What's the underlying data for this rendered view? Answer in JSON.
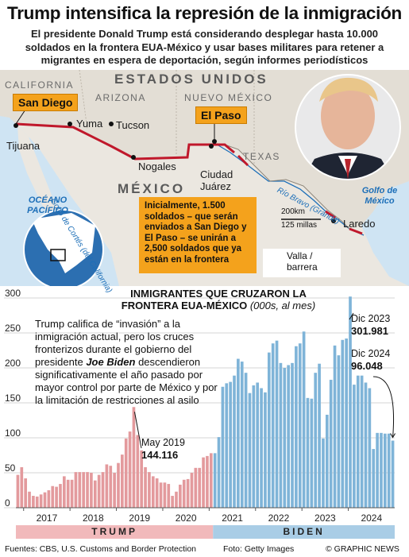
{
  "header": {
    "title": "Trump intensifica la represión de la inmigración",
    "subtitle": "El presidente Donald Trump está considerando desplegar hasta 10.000 soldados en la frontera EUA-México y usar bases militares para retener a migrantes en espera de deportación, según informes periodísticos"
  },
  "map": {
    "countries": {
      "usa": "ESTADOS UNIDOS",
      "mexico": "MÉXICO"
    },
    "states": {
      "california": "CALIFORNIA",
      "arizona": "ARIZONA",
      "new_mexico": "NUEVO MÉXICO",
      "texas": "TEXAS"
    },
    "cities": {
      "san_diego": "San Diego",
      "tijuana": "Tijuana",
      "yuma": "Yuma",
      "tucson": "Tucson",
      "nogales": "Nogales",
      "el_paso": "El Paso",
      "ciudad_juarez_1": "Ciudad",
      "ciudad_juarez_2": "Juárez",
      "laredo": "Laredo"
    },
    "water": {
      "pacific_1": "OCÉANO",
      "pacific_2": "PACÍFICO",
      "gulf_california": "Golfo de Cortés (del California)",
      "gulf_mexico_1": "Golfo de",
      "gulf_mexico_2": "México",
      "river": "Río Bravo (Grande)"
    },
    "scale": {
      "km": "200km",
      "miles": "125 millas"
    },
    "infobox": "Inicialmente, 1.500 soldados – que serán enviados a San Diego y El Paso – se unirán a 2,500 soldados que ya están en la frontera",
    "legend": {
      "label_1": "Valla /",
      "label_2": "barrera",
      "color": "#c0182b"
    },
    "colors": {
      "land": "#ebe7e0",
      "usa_land": "#e3ded5",
      "water": "#cfe4f3",
      "callout": "#f4a21c"
    }
  },
  "chart": {
    "title_line1": "INMIGRANTES QUE CRUZARON LA",
    "title_line2": "FRONTERA EUA-MÉXICO",
    "title_unit": "(000s, al mes)",
    "note_pre": "Trump califica de “invasión” a la inmigración actual, pero los cruces fronterizos durante el gobierno del presidente ",
    "note_name": "Joe Biden",
    "note_post": " descendieron significativamente el año pasado por mayor control por parte de México y por la limitación de restricciones al asilo",
    "annotations": {
      "may2019_label": "May 2019",
      "may2019_value": "144.116",
      "dec2023_label": "Dic 2023",
      "dec2023_value": "301.981",
      "dec2024_label": "Dic 2024",
      "dec2024_value": "96.048"
    },
    "eras": {
      "trump": "TRUMP",
      "biden": "BIDEN"
    },
    "colors": {
      "trump": "#e39a9d",
      "biden": "#7fb4d8",
      "trump_band": "#f1b9bb",
      "biden_band": "#a9cde6"
    }
  },
  "chart_data": {
    "type": "bar",
    "title": "INMIGRANTES QUE CRUZARON LA FRONTERA EUA-MÉXICO (000s, al mes)",
    "ylim": [
      0,
      300
    ],
    "yticks": [
      0,
      50,
      100,
      150,
      200,
      250,
      300
    ],
    "xticks": [
      "2017",
      "2018",
      "2019",
      "2020",
      "2021",
      "2022",
      "2023",
      "2024"
    ],
    "start": "2016-11",
    "series": [
      {
        "name": "TRUMP",
        "values": [
          47,
          58,
          42,
          23,
          17,
          16,
          19,
          22,
          25,
          31,
          30,
          34,
          45,
          40,
          40,
          51,
          51,
          51,
          51,
          50,
          39,
          47,
          51,
          62,
          60,
          50,
          64,
          76,
          99,
          109,
          144,
          104,
          82,
          58,
          51,
          45,
          42,
          36,
          36,
          34,
          17,
          23,
          33,
          40,
          41,
          50,
          57,
          57,
          72,
          74,
          78
        ]
      },
      {
        "name": "BIDEN",
        "values": [
          78,
          101,
          173,
          178,
          180,
          189,
          213,
          209,
          193,
          164,
          175,
          179,
          171,
          165,
          222,
          235,
          239,
          207,
          200,
          204,
          207,
          231,
          235,
          252,
          157,
          156,
          193,
          206,
          99,
          133,
          183,
          232,
          218,
          240,
          242,
          302,
          176,
          189,
          189,
          179,
          171,
          84,
          107,
          107,
          106,
          106,
          96
        ]
      }
    ]
  },
  "footer": {
    "sources": "Fuentes: CBS, U.S. Customs and Border Protection",
    "photo": "Foto: Getty Images",
    "credit": "© GRAPHIC NEWS"
  }
}
